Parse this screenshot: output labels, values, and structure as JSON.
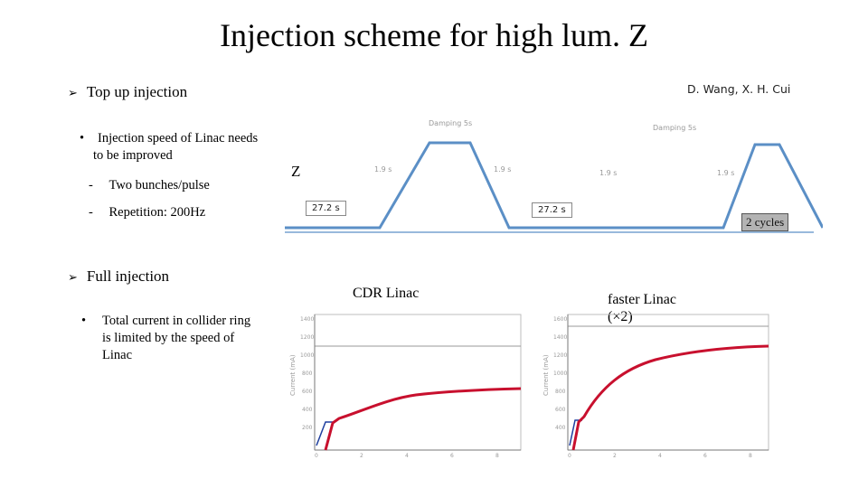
{
  "slide": {
    "title": "Injection scheme for high lum. Z",
    "authors": "D. Wang, X. H. Cui"
  },
  "top_up": {
    "heading": "Top up injection",
    "bullet": "Injection speed of Linac needs to be improved",
    "subitems": [
      "Two bunches/pulse",
      "Repetition: 200Hz"
    ]
  },
  "full_injection": {
    "heading": "Full injection",
    "bullet": "Total current in collider ring is limited by the speed of Linac"
  },
  "diagram": {
    "z_label": "Z",
    "damping_labels": [
      "Damping 5s",
      "Damping 5s"
    ],
    "ramp_labels": [
      "1.9 s",
      "1.9 s",
      "1.9 s",
      "1.9 s"
    ],
    "interval_labels": [
      "27.2 s",
      "27.2 s"
    ],
    "cycles_label": "2 cycles",
    "line_color": "#5b8fc6"
  },
  "plots": {
    "left_caption": "CDR Linac",
    "right_caption_line1": "faster Linac",
    "right_caption_line2": "(×2)",
    "curve_color": "#c8102e",
    "secondary_color": "#1f3f9f"
  }
}
